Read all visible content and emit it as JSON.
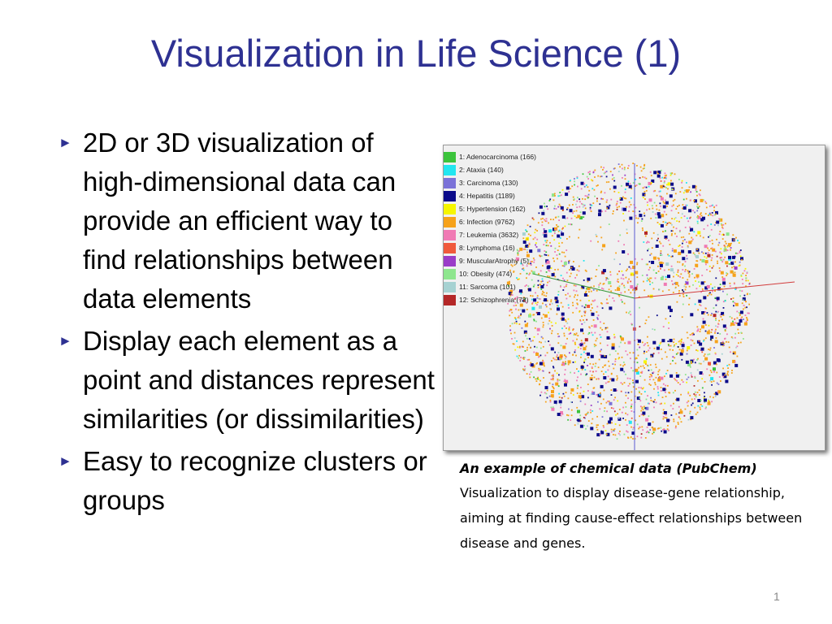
{
  "slide": {
    "title": "Visualization in Life Science (1)",
    "page_number": "1"
  },
  "bullets": [
    {
      "text": "2D or 3D visualization of high-dimensional data can provide an efficient way to find relationships between data elements"
    },
    {
      "text": "Display each element as a point and distances represent similarities (or dissimilarities)"
    },
    {
      "text": "Easy to recognize clusters or groups"
    }
  ],
  "figure": {
    "legend": [
      {
        "label": "1: Adenocarcinoma (166)",
        "color": "#3cc43c"
      },
      {
        "label": "2: Ataxia (140)",
        "color": "#22e6f0"
      },
      {
        "label": "3: Carcinoma (130)",
        "color": "#7b72d8"
      },
      {
        "label": "4: Hepatitis (1189)",
        "color": "#0a0a8a"
      },
      {
        "label": "5: Hypertension (162)",
        "color": "#f6f600"
      },
      {
        "label": "6: Infection (9762)",
        "color": "#f6a21a"
      },
      {
        "label": "7: Leukemia (3632)",
        "color": "#f07ab4"
      },
      {
        "label": "8: Lymphoma (16)",
        "color": "#f05a3c"
      },
      {
        "label": "9: MuscularAtrophy (5)",
        "color": "#9a3cc8"
      },
      {
        "label": "10: Obesity (474)",
        "color": "#8ee68e"
      },
      {
        "label": "11: Sarcoma (101)",
        "color": "#a6d2d2"
      },
      {
        "label": "12: Schizophrenia (78)",
        "color": "#b42828"
      }
    ]
  },
  "caption": {
    "heading": "An example of chemical data (PubChem)",
    "body": "Visualization to display disease-gene relationship, aiming at finding cause-effect relationships between disease and genes."
  }
}
